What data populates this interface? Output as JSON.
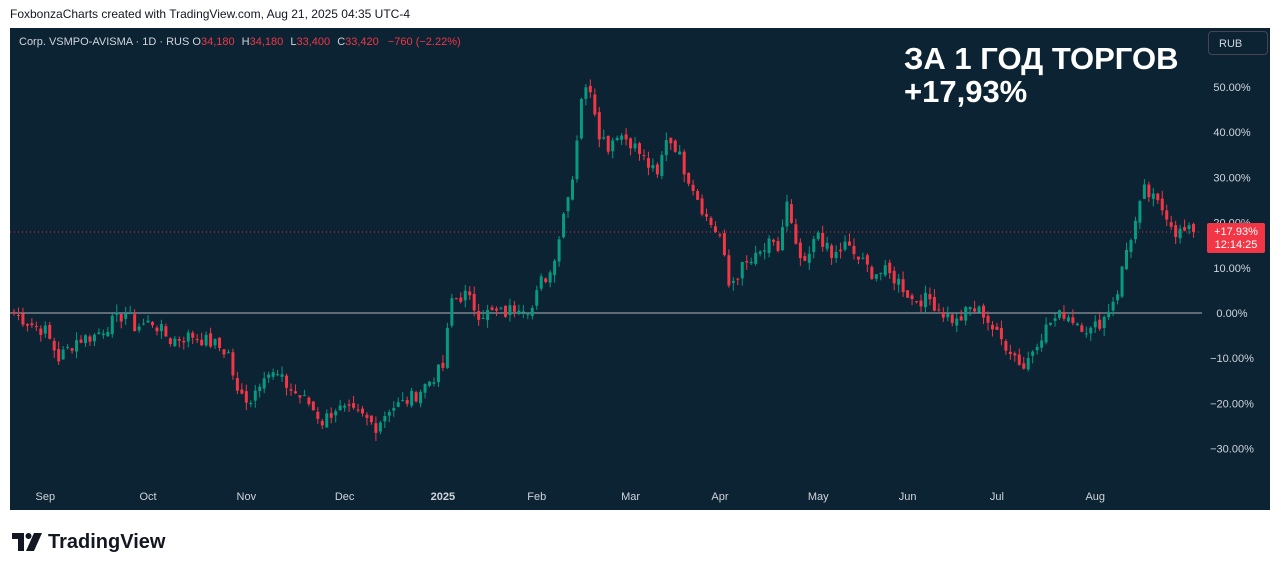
{
  "header": {
    "attribution": "FoxbonzaCharts created with TradingView.com, Aug 21, 2025 04:35 UTC-4"
  },
  "legend": {
    "symbol": "Corp. VSMPO-AVISMA · 1D · RUS",
    "o_label": "O",
    "o_value": "34,180",
    "h_label": "H",
    "h_value": "34,180",
    "l_label": "L",
    "l_value": "33,400",
    "c_label": "C",
    "c_value": "33,420",
    "change": "−760 (−2.22%)"
  },
  "overlay": {
    "line1": "ЗА 1 ГОД ТОРГОВ",
    "line2": "+17,93%"
  },
  "currency_button": "RUB",
  "price_tag": {
    "percent": "+17.93%",
    "countdown": "12:14:25"
  },
  "footer": {
    "brand": "TradingView"
  },
  "colors": {
    "background": "#0b2333",
    "up": "#089981",
    "down": "#f23645",
    "axis_text": "#d1d4dc",
    "zero_line": "#b2b5be"
  },
  "chart_data": {
    "type": "candlestick",
    "y_unit": "percent change",
    "ylim": [
      -38,
      58
    ],
    "y_ticks": [
      50,
      40,
      30,
      20,
      10,
      0,
      -10,
      -20,
      -30
    ],
    "y_tick_labels": [
      "50.00%",
      "40.00%",
      "30.00%",
      "20.00%",
      "10.00%",
      "0.00%",
      "−10.00%",
      "−20.00%",
      "−30.00%"
    ],
    "x_month_labels": [
      "Sep",
      "Oct",
      "Nov",
      "Dec",
      "2025",
      "Feb",
      "Mar",
      "Apr",
      "May",
      "Jun",
      "Jul",
      "Aug"
    ],
    "x_month_positions": [
      7,
      30,
      52,
      74,
      96,
      117,
      138,
      158,
      180,
      200,
      220,
      242
    ],
    "bars_total": 265,
    "baseline": 0,
    "current_value": 17.93,
    "anchors": [
      [
        0,
        0
      ],
      [
        3,
        -2
      ],
      [
        7,
        -4
      ],
      [
        10,
        -10
      ],
      [
        14,
        -6
      ],
      [
        18,
        -5
      ],
      [
        22,
        -2
      ],
      [
        25,
        0
      ],
      [
        27,
        -3
      ],
      [
        31,
        -2
      ],
      [
        35,
        -6
      ],
      [
        40,
        -5
      ],
      [
        45,
        -7
      ],
      [
        48,
        -9
      ],
      [
        50,
        -18
      ],
      [
        53,
        -19
      ],
      [
        56,
        -13
      ],
      [
        59,
        -14
      ],
      [
        62,
        -17
      ],
      [
        66,
        -20
      ],
      [
        69,
        -24
      ],
      [
        72,
        -21
      ],
      [
        75,
        -22
      ],
      [
        78,
        -23
      ],
      [
        81,
        -25
      ],
      [
        84,
        -21
      ],
      [
        87,
        -20
      ],
      [
        90,
        -18
      ],
      [
        93,
        -15
      ],
      [
        96,
        -12
      ],
      [
        98,
        3
      ],
      [
        101,
        4
      ],
      [
        104,
        0
      ],
      [
        107,
        0
      ],
      [
        110,
        0
      ],
      [
        113,
        2
      ],
      [
        116,
        1
      ],
      [
        118,
        7
      ],
      [
        120,
        9
      ],
      [
        122,
        17
      ],
      [
        124,
        27
      ],
      [
        125,
        30
      ],
      [
        127,
        48
      ],
      [
        129,
        50
      ],
      [
        131,
        40
      ],
      [
        133,
        37
      ],
      [
        135,
        40
      ],
      [
        138,
        38
      ],
      [
        141,
        34
      ],
      [
        144,
        30
      ],
      [
        146,
        39
      ],
      [
        148,
        37
      ],
      [
        150,
        32
      ],
      [
        152,
        28
      ],
      [
        155,
        21
      ],
      [
        158,
        17
      ],
      [
        160,
        6
      ],
      [
        163,
        10
      ],
      [
        166,
        12
      ],
      [
        169,
        15
      ],
      [
        171,
        14
      ],
      [
        173,
        24
      ],
      [
        175,
        14
      ],
      [
        177,
        10
      ],
      [
        180,
        18
      ],
      [
        183,
        12
      ],
      [
        186,
        15
      ],
      [
        189,
        12
      ],
      [
        192,
        9
      ],
      [
        195,
        9
      ],
      [
        198,
        7
      ],
      [
        201,
        3
      ],
      [
        205,
        3
      ],
      [
        208,
        0
      ],
      [
        211,
        -2
      ],
      [
        214,
        1
      ],
      [
        217,
        0
      ],
      [
        220,
        -5
      ],
      [
        223,
        -8
      ],
      [
        226,
        -12
      ],
      [
        229,
        -6
      ],
      [
        232,
        -2
      ],
      [
        235,
        0
      ],
      [
        238,
        -2
      ],
      [
        241,
        -4
      ],
      [
        244,
        -1
      ],
      [
        247,
        5
      ],
      [
        249,
        14
      ],
      [
        251,
        20
      ],
      [
        253,
        27
      ],
      [
        255,
        25
      ],
      [
        258,
        22
      ],
      [
        260,
        18
      ],
      [
        262,
        17.93
      ]
    ]
  }
}
